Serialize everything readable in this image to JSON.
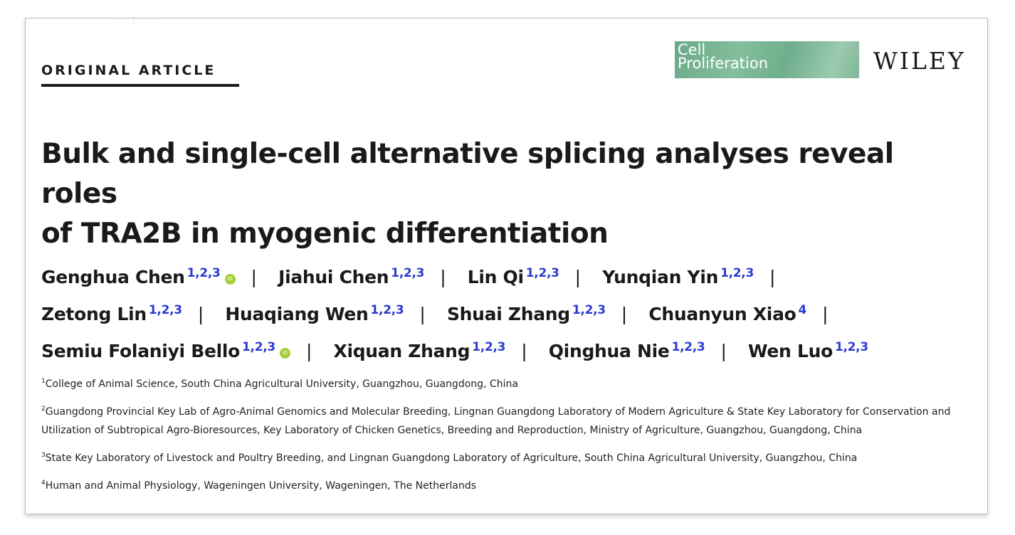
{
  "header": {
    "running_head": "· · · ·  | · · · · ·",
    "article_type": "ORIGINAL ARTICLE",
    "journal_logo_line1": "Cell",
    "journal_logo_line2": "Proliferation",
    "publisher": "WILEY"
  },
  "title_line1": "Bulk and single-cell alternative splicing analyses reveal roles",
  "title_line2": "of TRA2B in myogenic differentiation",
  "authors": [
    {
      "name": "Genghua Chen",
      "aff": "1,2,3",
      "orcid": true
    },
    {
      "name": "Jiahui Chen",
      "aff": "1,2,3",
      "orcid": false
    },
    {
      "name": "Lin Qi",
      "aff": "1,2,3",
      "orcid": false
    },
    {
      "name": "Yunqian Yin",
      "aff": "1,2,3",
      "orcid": false
    },
    {
      "name": "Zetong Lin",
      "aff": "1,2,3",
      "orcid": false
    },
    {
      "name": "Huaqiang Wen",
      "aff": "1,2,3",
      "orcid": false
    },
    {
      "name": "Shuai Zhang",
      "aff": "1,2,3",
      "orcid": false
    },
    {
      "name": "Chuanyun Xiao",
      "aff": "4",
      "orcid": false
    },
    {
      "name": "Semiu Folaniyi Bello",
      "aff": "1,2,3",
      "orcid": true
    },
    {
      "name": "Xiquan Zhang",
      "aff": "1,2,3",
      "orcid": false
    },
    {
      "name": "Qinghua Nie",
      "aff": "1,2,3",
      "orcid": false
    },
    {
      "name": "Wen Luo",
      "aff": "1,2,3",
      "orcid": false
    }
  ],
  "author_separator": "|",
  "orcid_icon_label": "iD",
  "affiliations": [
    {
      "num": "1",
      "text": "College of Animal Science, South China Agricultural University, Guangzhou, Guangdong, China"
    },
    {
      "num": "2",
      "text": "Guangdong Provincial Key Lab of Agro-Animal Genomics and Molecular Breeding, Lingnan Guangdong Laboratory of Modern Agriculture & State Key Laboratory for Conservation and Utilization of Subtropical Agro-Bioresources, Key Laboratory of Chicken Genetics, Breeding and Reproduction, Ministry of Agriculture, Guangzhou, Guangdong, China"
    },
    {
      "num": "3",
      "text": "State Key Laboratory of Livestock and Poultry Breeding, and Lingnan Guangdong Laboratory of Agriculture, South China Agricultural University, Guangzhou, China"
    },
    {
      "num": "4",
      "text": "Human and Animal Physiology, Wageningen University, Wageningen, The Netherlands"
    }
  ],
  "colors": {
    "affiliation_link": "#2b3ccf",
    "orcid": "#a6ce39",
    "journal_logo": "#6aa888"
  }
}
